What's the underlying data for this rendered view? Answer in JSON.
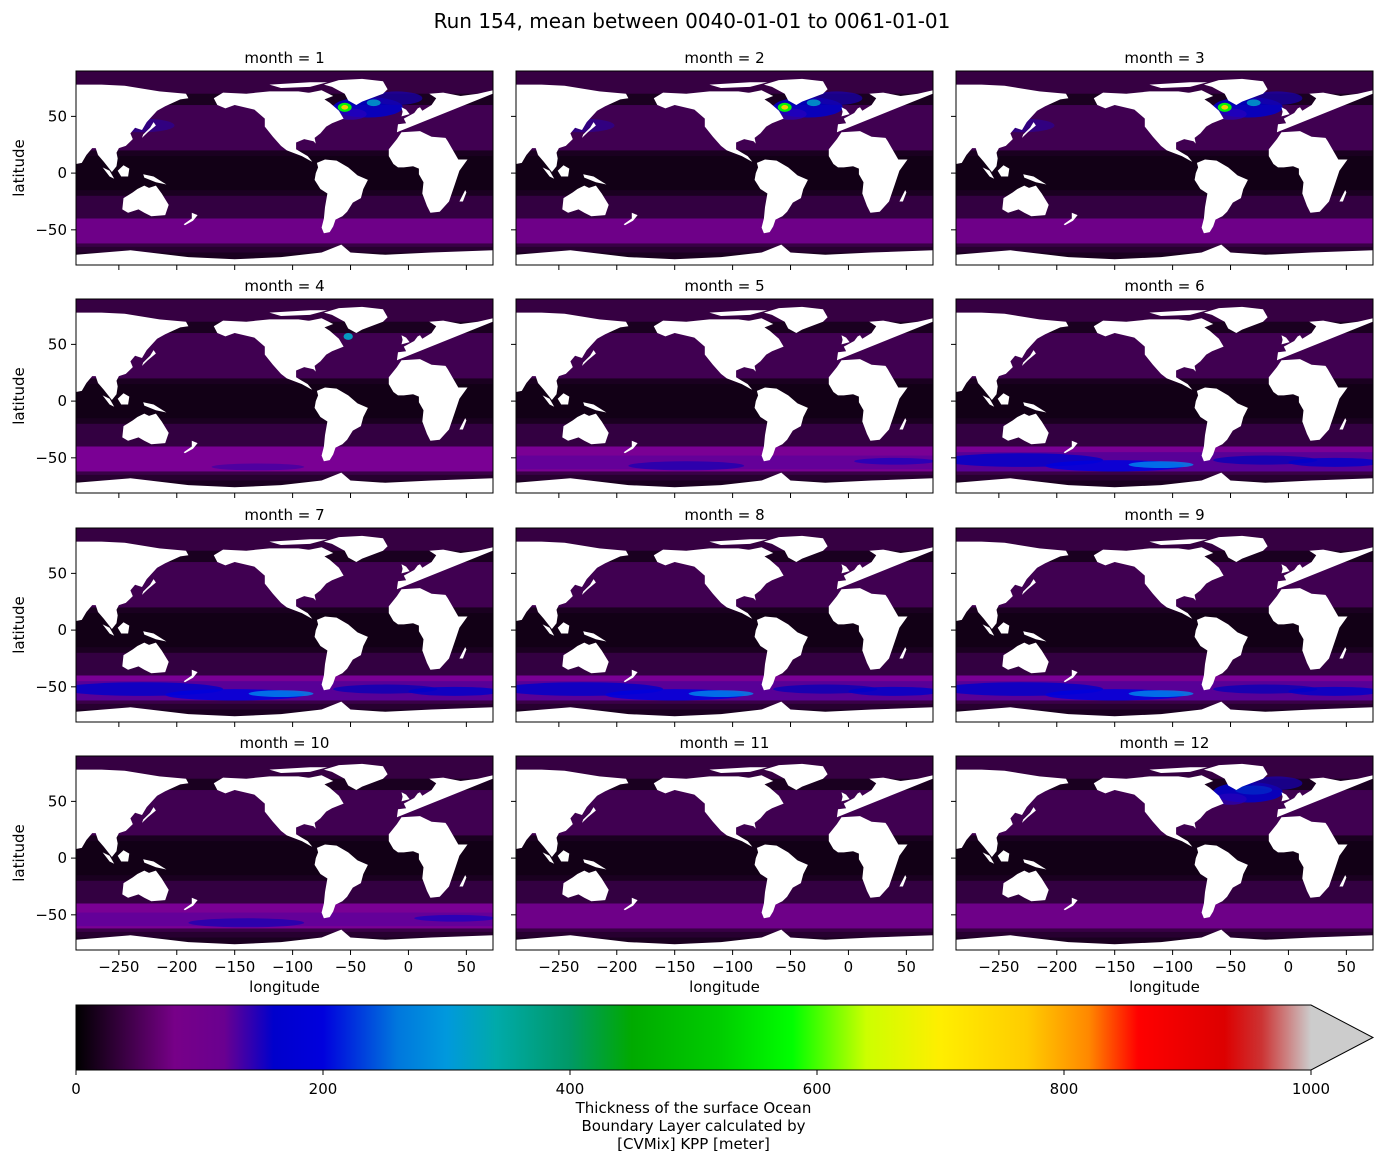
{
  "figure": {
    "title": "Run 154, mean between 0040-01-01 to 0061-01-01"
  },
  "chart_data": {
    "type": "heatmap",
    "facet_variable": "month",
    "panels": [
      {
        "title": "month = 1",
        "month": 1,
        "pattern": "north-atlantic-deep"
      },
      {
        "title": "month = 2",
        "month": 2,
        "pattern": "north-atlantic-deep"
      },
      {
        "title": "month = 3",
        "month": 3,
        "pattern": "north-atlantic-deep"
      },
      {
        "title": "month = 4",
        "month": 4,
        "pattern": "transition"
      },
      {
        "title": "month = 5",
        "month": 5,
        "pattern": "southern-moderate"
      },
      {
        "title": "month = 6",
        "month": 6,
        "pattern": "southern-deep"
      },
      {
        "title": "month = 7",
        "month": 7,
        "pattern": "southern-deep"
      },
      {
        "title": "month = 8",
        "month": 8,
        "pattern": "southern-deep"
      },
      {
        "title": "month = 9",
        "month": 9,
        "pattern": "southern-deep"
      },
      {
        "title": "month = 10",
        "month": 10,
        "pattern": "southern-moderate"
      },
      {
        "title": "month = 11",
        "month": 11,
        "pattern": "weak"
      },
      {
        "title": "month = 12",
        "month": 12,
        "pattern": "north-atlantic-moderate"
      }
    ],
    "xlabel": "longitude",
    "ylabel": "latitude",
    "xlim": [
      -287,
      73
    ],
    "ylim": [
      -81,
      90
    ],
    "xticks": [
      -250,
      -200,
      -150,
      -100,
      -50,
      0,
      50
    ],
    "yticks": [
      -50,
      0,
      50
    ],
    "xtick_labels": [
      "−250",
      "−200",
      "−150",
      "−100",
      "−50",
      "0",
      "50"
    ],
    "ytick_labels": [
      "−50",
      "0",
      "50"
    ],
    "colorbar": {
      "label_lines": [
        "Thickness of the surface Ocean",
        "Boundary Layer calculated by",
        "[CVMix] KPP [meter]"
      ],
      "range": [
        0,
        1000
      ],
      "ticks": [
        0,
        200,
        400,
        600,
        800,
        1000
      ],
      "tick_labels": [
        "0",
        "200",
        "400",
        "600",
        "800",
        "1000"
      ],
      "extend": "max",
      "extend_color": "#cccccc",
      "colormap_stops": [
        {
          "value": 0,
          "color": "#000000"
        },
        {
          "value": 80,
          "color": "#770088"
        },
        {
          "value": 120,
          "color": "#6a0090"
        },
        {
          "value": 160,
          "color": "#0000cc"
        },
        {
          "value": 200,
          "color": "#0000dd"
        },
        {
          "value": 260,
          "color": "#0077dd"
        },
        {
          "value": 300,
          "color": "#0099dd"
        },
        {
          "value": 340,
          "color": "#00aaaa"
        },
        {
          "value": 400,
          "color": "#009966"
        },
        {
          "value": 450,
          "color": "#00aa00"
        },
        {
          "value": 520,
          "color": "#00cc00"
        },
        {
          "value": 580,
          "color": "#00ff00"
        },
        {
          "value": 640,
          "color": "#ccff00"
        },
        {
          "value": 700,
          "color": "#ffee00"
        },
        {
          "value": 770,
          "color": "#ffcc00"
        },
        {
          "value": 820,
          "color": "#ff8800"
        },
        {
          "value": 860,
          "color": "#ff0000"
        },
        {
          "value": 930,
          "color": "#dd0000"
        },
        {
          "value": 960,
          "color": "#cc3333"
        },
        {
          "value": 1000,
          "color": "#cccccc"
        }
      ]
    }
  }
}
